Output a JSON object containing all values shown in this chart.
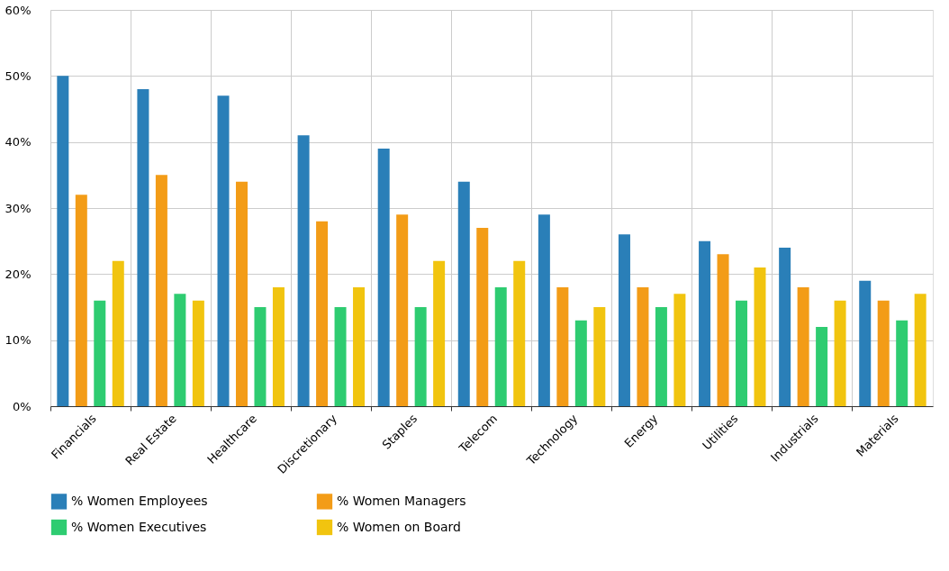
{
  "chart_data": {
    "type": "bar",
    "categories": [
      "Financials",
      "Real Estate",
      "Healthcare",
      "Discretionary",
      "Staples",
      "Telecom",
      "Technology",
      "Energy",
      "Utilities",
      "Industrials",
      "Materials"
    ],
    "series": [
      {
        "name": "% Women Employees",
        "color": "#2a7fb8",
        "values": [
          50,
          48,
          47,
          41,
          39,
          34,
          29,
          26,
          25,
          24,
          19
        ]
      },
      {
        "name": "% Women Managers",
        "color": "#f39c17",
        "values": [
          32,
          35,
          34,
          28,
          29,
          27,
          18,
          18,
          23,
          18,
          16
        ]
      },
      {
        "name": "% Women Executives",
        "color": "#2ecc71",
        "values": [
          16,
          17,
          15,
          15,
          15,
          18,
          13,
          15,
          16,
          12,
          13
        ]
      },
      {
        "name": "% Women on Board",
        "color": "#f1c40f",
        "values": [
          22,
          16,
          18,
          18,
          22,
          22,
          15,
          17,
          21,
          16,
          17
        ]
      }
    ],
    "ylim": [
      0,
      60
    ],
    "yticks": [
      {
        "value": 0,
        "label": "0%"
      },
      {
        "value": 10,
        "label": "10%"
      },
      {
        "value": 20,
        "label": "20%"
      },
      {
        "value": 30,
        "label": "30%"
      },
      {
        "value": 40,
        "label": "40%"
      },
      {
        "value": 50,
        "label": "50%"
      },
      {
        "value": 60,
        "label": "60%"
      }
    ],
    "grid": true,
    "legend": "bottom"
  }
}
